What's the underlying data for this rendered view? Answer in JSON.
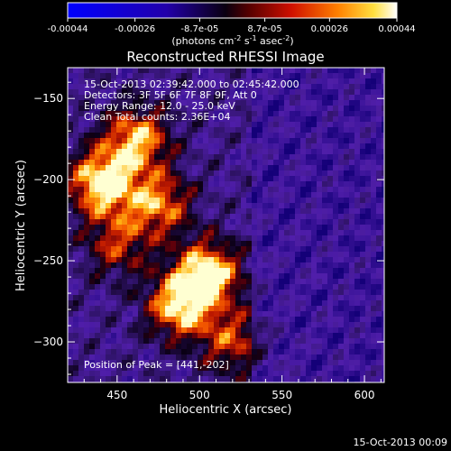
{
  "colorbar": {
    "tick_labels": [
      "-0.00044",
      "-0.00026",
      "-8.7e-05",
      "8.7e-05",
      "0.00026",
      "0.00044"
    ],
    "tick_values": [
      -0.00044,
      -0.00026,
      -8.7e-05,
      8.7e-05,
      0.00026,
      0.00044
    ],
    "range": [
      -0.00044,
      0.00044
    ],
    "unit_parts": {
      "a": "(photons cm",
      "b": "-2",
      "c": " s",
      "d": "-1",
      "e": " asec",
      "f": "-2",
      "g": ")"
    },
    "colormap": "blue-to-black-to-red-yellow-white"
  },
  "chart_data": {
    "type": "heatmap",
    "title": "Reconstructed RHESSI Image",
    "xlabel": "Heliocentric X (arcsec)",
    "ylabel": "Heliocentric Y (arcsec)",
    "xlim": [
      420,
      612
    ],
    "ylim": [
      -325,
      -131
    ],
    "x_ticks": [
      450,
      500,
      550,
      600
    ],
    "y_ticks": [
      -150,
      -200,
      -250,
      -300
    ],
    "x_tick_labels": [
      "450",
      "500",
      "550",
      "600"
    ],
    "y_tick_labels": [
      "−150",
      "−200",
      "−250",
      "−300"
    ],
    "annotations": [
      "15-Oct-2013 02:39:42.000 to 02:45:42.000",
      "Detectors: 3F 5F 6F 7F 8F 9F, Att 0",
      "Energy Range: 12.0 - 25.0 keV",
      "Clean    Total counts: 2.36E+04"
    ],
    "peak_label": "Position of Peak = [441,-202]",
    "peak": [
      441,
      -202
    ],
    "bright_regions": [
      {
        "x": 441,
        "y": -202,
        "level": 1.0
      },
      {
        "x": 462,
        "y": -175,
        "level": 0.8
      },
      {
        "x": 505,
        "y": -258,
        "level": 0.95
      },
      {
        "x": 488,
        "y": -278,
        "level": 0.85
      },
      {
        "x": 520,
        "y": -300,
        "level": 0.55
      },
      {
        "x": 475,
        "y": -215,
        "level": 0.7
      },
      {
        "x": 450,
        "y": -240,
        "level": 0.5
      }
    ]
  },
  "footer": {
    "timestamp": "15-Oct-2013 00:09"
  }
}
